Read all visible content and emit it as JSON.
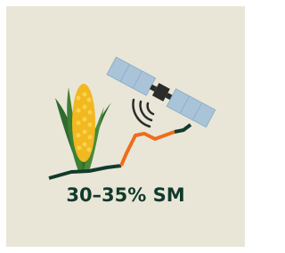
{
  "label": "30–35% SM"
}
